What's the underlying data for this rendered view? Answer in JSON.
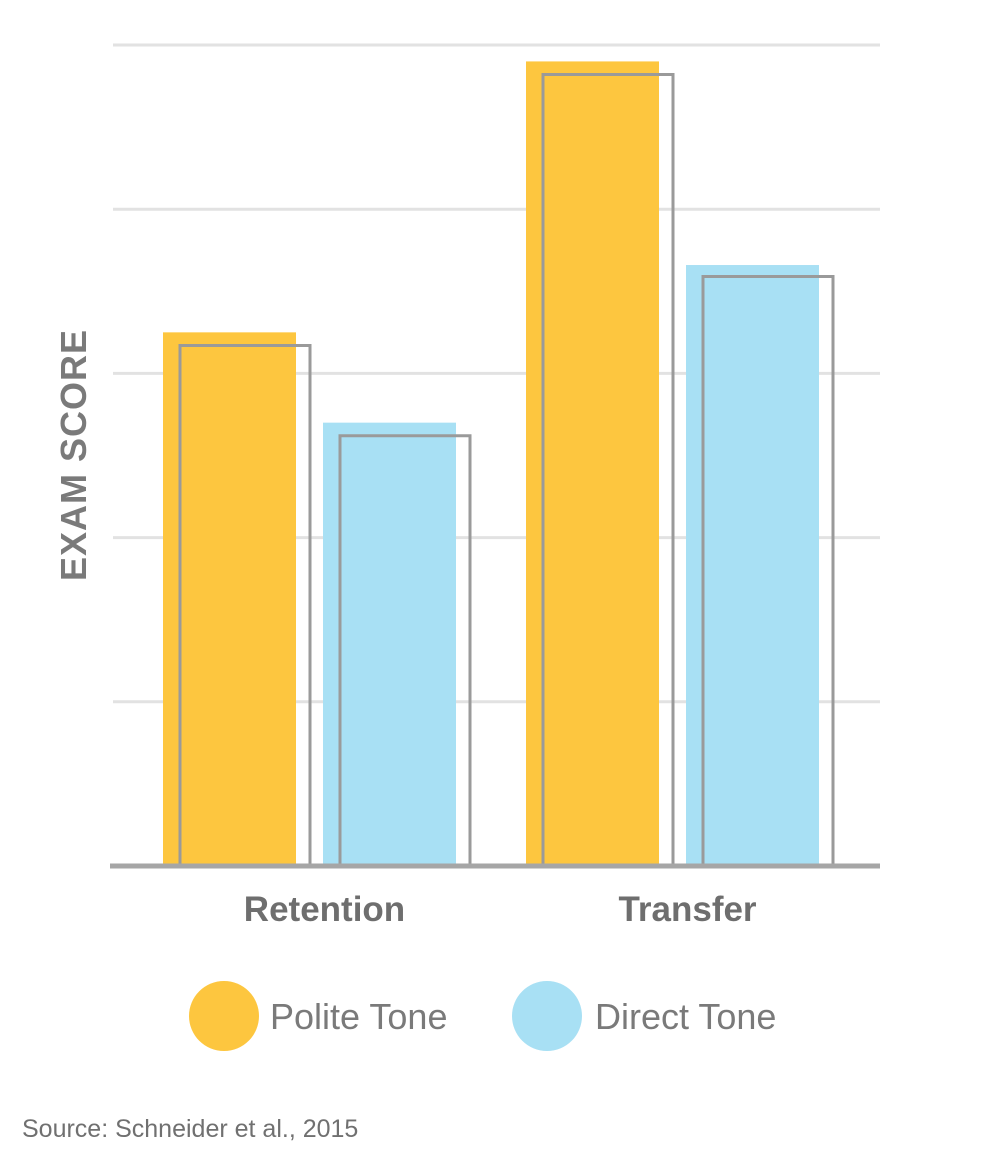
{
  "chart_data": {
    "type": "bar",
    "ylabel": "EXAM SCORE",
    "categories": [
      "Retention",
      "Transfer"
    ],
    "ylim": [
      0,
      5
    ],
    "grid": true,
    "series": [
      {
        "name": "Polite Tone",
        "color": "#fdc63f",
        "values": [
          3.25,
          4.9
        ],
        "outline_values": [
          3.17,
          4.82
        ]
      },
      {
        "name": "Direct Tone",
        "color": "#a8e0f4",
        "values": [
          2.7,
          3.66
        ],
        "outline_values": [
          2.62,
          3.59
        ]
      }
    ],
    "outline_color": "#9a9a9a",
    "legend_position": "bottom-center",
    "source": "Source: Schneider et al., 2015"
  }
}
